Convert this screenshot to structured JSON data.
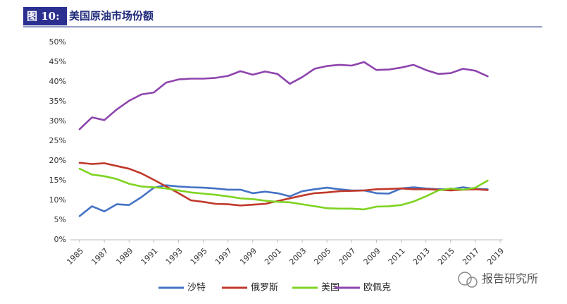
{
  "chart_data": {
    "type": "line",
    "figure_label": "图 10:",
    "title": "美国原油市场份额",
    "watermark": "报告研究所",
    "x": [
      1985,
      1986,
      1987,
      1988,
      1989,
      1990,
      1991,
      1992,
      1993,
      1994,
      1995,
      1996,
      1997,
      1998,
      1999,
      2000,
      2001,
      2002,
      2003,
      2004,
      2005,
      2006,
      2007,
      2008,
      2009,
      2010,
      2011,
      2012,
      2013,
      2014,
      2015,
      2016,
      2017,
      2018
    ],
    "xlim": [
      1985,
      2019
    ],
    "xticks": [
      1985,
      1987,
      1989,
      1991,
      1993,
      1995,
      1997,
      1999,
      2001,
      2003,
      2005,
      2007,
      2009,
      2011,
      2013,
      2015,
      2017,
      2019
    ],
    "ylim": [
      0,
      50
    ],
    "yticks": [
      {
        "value": 0,
        "label": "0%"
      },
      {
        "value": 5,
        "label": "5%"
      },
      {
        "value": 10,
        "label": "10%"
      },
      {
        "value": 15,
        "label": "15%"
      },
      {
        "value": 20,
        "label": "20%"
      },
      {
        "value": 25,
        "label": "25%"
      },
      {
        "value": 30,
        "label": "30%"
      },
      {
        "value": 35,
        "label": "35%"
      },
      {
        "value": 40,
        "label": "40%"
      },
      {
        "value": 45,
        "label": "45%"
      },
      {
        "value": 50,
        "label": "50%"
      }
    ],
    "grid": false,
    "legend": "bottom",
    "series": [
      {
        "name": "沙特",
        "color": "#4472c4",
        "values": [
          6,
          8.5,
          7.2,
          9,
          8.8,
          10.8,
          13.2,
          13.8,
          13.5,
          13.3,
          13.2,
          13,
          12.7,
          12.7,
          11.8,
          12.2,
          11.8,
          11,
          12.3,
          12.8,
          13.2,
          12.8,
          12.5,
          12.5,
          11.8,
          11.7,
          13,
          13.3,
          13,
          12.8,
          12.8,
          13.3,
          12.9,
          12.8
        ]
      },
      {
        "name": "俄罗斯",
        "color": "#c0392b",
        "values": [
          19.5,
          19.2,
          19.4,
          18.7,
          18,
          16.8,
          15.2,
          13.5,
          11.8,
          10,
          9.6,
          9.1,
          9,
          8.7,
          8.9,
          9.1,
          9.8,
          10.5,
          11.2,
          11.8,
          12,
          12.3,
          12.4,
          12.5,
          12.8,
          12.9,
          13,
          12.8,
          12.8,
          12.7,
          12.5,
          12.7,
          12.8,
          12.6
        ]
      },
      {
        "name": "美国",
        "color": "#7ed321",
        "values": [
          18,
          16.5,
          16.1,
          15.4,
          14.2,
          13.5,
          13.3,
          13,
          12.5,
          12,
          11.7,
          11.4,
          11,
          10.5,
          10.3,
          9.9,
          9.6,
          9.5,
          9,
          8.5,
          8,
          7.9,
          7.9,
          7.7,
          8.4,
          8.5,
          8.8,
          9.7,
          11,
          12.5,
          13,
          12.7,
          13.2,
          15
        ]
      },
      {
        "name": "欧佩克",
        "color": "#8e44ad",
        "values": [
          28,
          31,
          30.3,
          33,
          35.2,
          36.8,
          37.3,
          39.8,
          40.6,
          40.8,
          40.8,
          41,
          41.5,
          42.7,
          41.8,
          42.6,
          42,
          39.5,
          41.2,
          43.3,
          44,
          44.3,
          44.1,
          45,
          43,
          43.1,
          43.6,
          44.3,
          43,
          42,
          42.2,
          43.3,
          42.8,
          41.4
        ]
      }
    ]
  }
}
